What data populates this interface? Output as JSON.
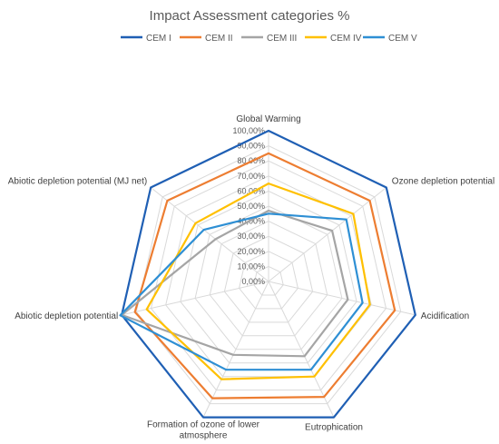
{
  "chart_data": {
    "type": "radar",
    "title": "Impact Assessment categories %",
    "legend_position": "top",
    "categories": [
      "Global Warming",
      "Ozone depletion potential",
      "Acidification",
      "Eutrophication",
      "Formation of ozone of lower atmosphere",
      "Abiotic depletion potential",
      "Abiotic depletion potential (MJ net)"
    ],
    "category_lines": [
      [
        "Global Warming"
      ],
      [
        "Ozone depletion potential"
      ],
      [
        "Acidification"
      ],
      [
        "Eutrophication"
      ],
      [
        "Formation of ozone of lower",
        "atmosphere"
      ],
      [
        "Abiotic depletion potential"
      ],
      [
        "Abiotic depletion potential (MJ net)"
      ]
    ],
    "ticks": [
      "0,00%",
      "10,00%",
      "20,00%",
      "30,00%",
      "40,00%",
      "50,00%",
      "60,00%",
      "70,00%",
      "80,00%",
      "90,00%",
      "100,00%"
    ],
    "rlim": [
      0,
      100
    ],
    "grid": true,
    "series": [
      {
        "name": "CEM I",
        "color": "#1f5fb4",
        "values": [
          100,
          100,
          100,
          100,
          100,
          100,
          100
        ]
      },
      {
        "name": "CEM II",
        "color": "#ed7d31",
        "values": [
          85,
          86,
          86,
          85,
          86,
          91,
          86
        ]
      },
      {
        "name": "CEM III",
        "color": "#a5a5a5",
        "values": [
          47,
          54,
          54,
          55,
          54,
          100,
          45
        ]
      },
      {
        "name": "CEM IV",
        "color": "#ffc000",
        "values": [
          65,
          72,
          69,
          70,
          72,
          83,
          62
        ]
      },
      {
        "name": "CEM V",
        "color": "#2e8fd4",
        "values": [
          45,
          66,
          64,
          65,
          65,
          101,
          55
        ]
      }
    ]
  }
}
